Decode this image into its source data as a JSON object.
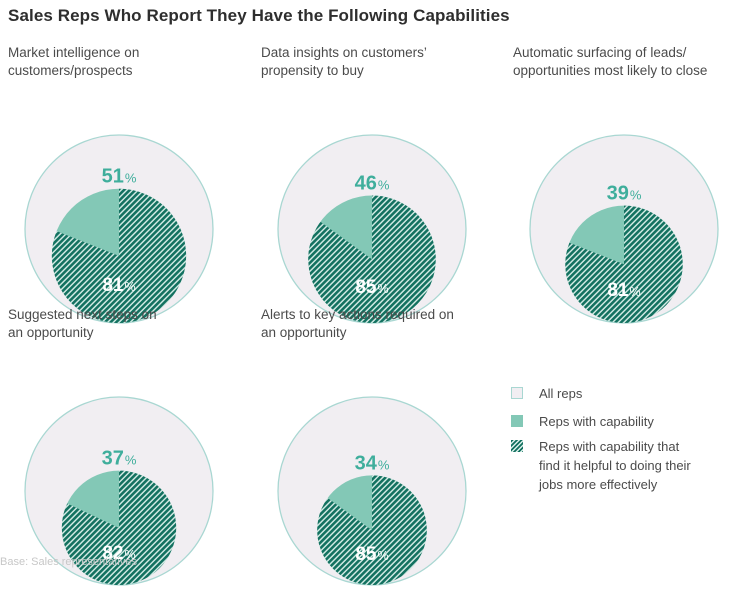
{
  "title": "Sales Reps Who Report They Have the Following Capabilities",
  "base_note": "Base: Sales representatives",
  "colors": {
    "all_reps_fill": "#f1eef2",
    "all_reps_border": "#a9d7d2",
    "reps_with_capability": "#83c8b6",
    "helpful_stripe_dark": "#137160",
    "helpful_stripe_light": "#d9efe9",
    "capability_pct_text": "#3fae9c"
  },
  "legend": [
    {
      "key": "all",
      "label_lines": [
        "All reps"
      ]
    },
    {
      "key": "capability",
      "label_lines": [
        "Reps with capability"
      ]
    },
    {
      "key": "helpful",
      "label_lines": [
        "Reps with capability that",
        "find it helpful to doing their",
        "jobs more effectively"
      ]
    }
  ],
  "chart_data": {
    "type": "pie",
    "description_of_encoding": "Outer circle = all reps; filled circle = reps with capability; hatched slice = share of those reps who find it helpful",
    "series": [
      {
        "label_lines": [
          "Market intelligence on",
          "customers/prospects"
        ],
        "capability_pct": 51,
        "helpful_pct": 81,
        "capability_text": "51",
        "helpful_text": "81",
        "unit": "%"
      },
      {
        "label_lines": [
          "Data insights on customers’",
          "propensity to buy"
        ],
        "capability_pct": 46,
        "helpful_pct": 85,
        "capability_text": "46",
        "helpful_text": "85",
        "unit": "%"
      },
      {
        "label_lines": [
          "Automatic surfacing of leads/",
          "opportunities most likely to close"
        ],
        "capability_pct": 39,
        "helpful_pct": 81,
        "capability_text": "39",
        "helpful_text": "81",
        "unit": "%"
      },
      {
        "label_lines": [
          "Suggested next steps on",
          "an opportunity"
        ],
        "capability_pct": 37,
        "helpful_pct": 82,
        "capability_text": "37",
        "helpful_text": "82",
        "unit": "%"
      },
      {
        "label_lines": [
          "Alerts to key actions required on",
          "an opportunity"
        ],
        "capability_pct": 34,
        "helpful_pct": 85,
        "capability_text": "34",
        "helpful_text": "85",
        "unit": "%"
      }
    ]
  }
}
